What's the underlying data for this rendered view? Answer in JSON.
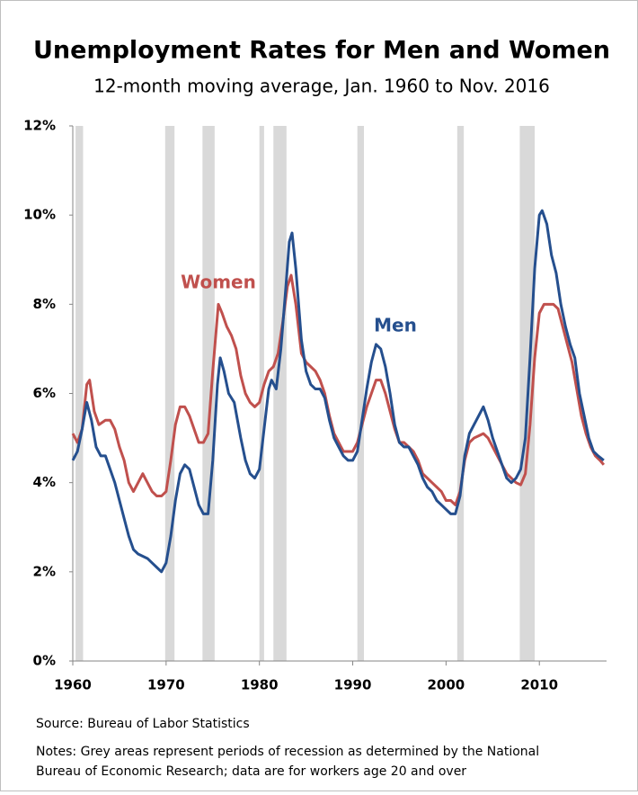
{
  "chart_data": {
    "type": "line",
    "title": "Unemployment Rates for Men and Women",
    "subtitle": "12-month moving average, Jan. 1960 to Nov. 2016",
    "source": "Source: Bureau of Labor Statistics",
    "notes": [
      "Notes: Grey areas represent periods of recession as determined by the National",
      "Bureau of Economic Research; data are for workers age 20 and over"
    ],
    "xlim": [
      1960,
      2017.2
    ],
    "xticks": [
      1960,
      1970,
      1980,
      1990,
      2000,
      2010
    ],
    "ylim": [
      0,
      12
    ],
    "yticks": [
      {
        "value": 0,
        "label": "0%"
      },
      {
        "value": 2,
        "label": "2%"
      },
      {
        "value": 4,
        "label": "4%"
      },
      {
        "value": 6,
        "label": "6%"
      },
      {
        "value": 8,
        "label": "8%"
      },
      {
        "value": 10,
        "label": "10%"
      },
      {
        "value": 12,
        "label": "12%"
      }
    ],
    "grid": false,
    "recession_color": "#d9d9d9",
    "recessions": [
      [
        1960.3,
        1961.1
      ],
      [
        1969.9,
        1970.9
      ],
      [
        1973.9,
        1975.2
      ],
      [
        1980.0,
        1980.5
      ],
      [
        1981.5,
        1982.9
      ],
      [
        1990.5,
        1991.2
      ],
      [
        2001.2,
        2001.9
      ],
      [
        2007.9,
        2009.5
      ]
    ],
    "series": [
      {
        "name": "Women",
        "color": "#c0504d",
        "x": [
          1960.0,
          1960.5,
          1961.0,
          1961.5,
          1961.8,
          1962.3,
          1962.8,
          1963.5,
          1964.0,
          1964.5,
          1965.0,
          1965.5,
          1966.0,
          1966.5,
          1967.0,
          1967.5,
          1968.0,
          1968.5,
          1969.0,
          1969.5,
          1970.0,
          1970.5,
          1971.0,
          1971.5,
          1972.0,
          1972.5,
          1973.0,
          1973.5,
          1974.0,
          1974.5,
          1975.0,
          1975.6,
          1976.0,
          1976.5,
          1977.0,
          1977.5,
          1978.0,
          1978.5,
          1979.0,
          1979.5,
          1980.0,
          1980.5,
          1981.0,
          1981.5,
          1982.0,
          1982.5,
          1983.0,
          1983.4,
          1983.9,
          1984.5,
          1985.0,
          1985.5,
          1986.0,
          1986.5,
          1987.0,
          1987.5,
          1988.0,
          1988.5,
          1989.0,
          1989.5,
          1990.0,
          1990.5,
          1991.0,
          1991.5,
          1992.0,
          1992.5,
          1993.0,
          1993.5,
          1994.0,
          1994.5,
          1995.0,
          1995.5,
          1996.0,
          1996.5,
          1997.0,
          1997.5,
          1998.0,
          1998.5,
          1999.0,
          1999.5,
          2000.0,
          2000.5,
          2001.0,
          2001.5,
          2002.0,
          2002.5,
          2003.0,
          2003.5,
          2004.0,
          2004.5,
          2005.0,
          2005.5,
          2006.0,
          2006.5,
          2007.0,
          2007.5,
          2008.0,
          2008.5,
          2009.0,
          2009.5,
          2010.0,
          2010.5,
          2011.0,
          2011.5,
          2012.0,
          2012.5,
          2013.0,
          2013.5,
          2014.0,
          2014.5,
          2015.0,
          2015.5,
          2016.0,
          2016.5,
          2016.9
        ],
        "values": [
          5.1,
          4.9,
          5.2,
          6.2,
          6.3,
          5.6,
          5.3,
          5.4,
          5.4,
          5.2,
          4.8,
          4.5,
          4.0,
          3.8,
          4.0,
          4.2,
          4.0,
          3.8,
          3.7,
          3.7,
          3.8,
          4.5,
          5.3,
          5.7,
          5.7,
          5.5,
          5.2,
          4.9,
          4.9,
          5.1,
          6.5,
          8.0,
          7.8,
          7.5,
          7.3,
          7.0,
          6.4,
          6.0,
          5.8,
          5.7,
          5.8,
          6.2,
          6.5,
          6.6,
          6.9,
          7.6,
          8.4,
          8.65,
          8.0,
          6.9,
          6.7,
          6.6,
          6.5,
          6.3,
          6.0,
          5.5,
          5.1,
          4.9,
          4.7,
          4.7,
          4.7,
          4.9,
          5.3,
          5.7,
          6.0,
          6.3,
          6.3,
          6.0,
          5.6,
          5.2,
          4.9,
          4.9,
          4.8,
          4.7,
          4.5,
          4.2,
          4.1,
          4.0,
          3.9,
          3.8,
          3.6,
          3.6,
          3.5,
          3.8,
          4.5,
          4.9,
          5.0,
          5.05,
          5.1,
          5.0,
          4.8,
          4.6,
          4.4,
          4.2,
          4.1,
          4.0,
          3.95,
          4.2,
          5.3,
          6.8,
          7.8,
          8.0,
          8.0,
          8.0,
          7.9,
          7.5,
          7.1,
          6.7,
          6.1,
          5.5,
          5.1,
          4.8,
          4.6,
          4.5,
          4.4
        ]
      },
      {
        "name": "Men",
        "color": "#254f8e",
        "x": [
          1960.0,
          1960.5,
          1961.0,
          1961.5,
          1962.0,
          1962.5,
          1963.0,
          1963.5,
          1964.0,
          1964.5,
          1965.0,
          1965.5,
          1966.0,
          1966.5,
          1967.0,
          1967.5,
          1968.0,
          1968.5,
          1969.0,
          1969.5,
          1970.0,
          1970.5,
          1971.0,
          1971.5,
          1972.0,
          1972.5,
          1973.0,
          1973.5,
          1974.0,
          1974.5,
          1975.0,
          1975.5,
          1975.8,
          1976.2,
          1976.7,
          1977.3,
          1978.0,
          1978.5,
          1979.0,
          1979.5,
          1980.0,
          1980.5,
          1981.0,
          1981.3,
          1981.8,
          1982.3,
          1982.8,
          1983.2,
          1983.5,
          1983.9,
          1984.5,
          1985.0,
          1985.5,
          1986.0,
          1986.5,
          1987.0,
          1987.5,
          1988.0,
          1988.5,
          1989.0,
          1989.5,
          1990.0,
          1990.5,
          1991.0,
          1991.5,
          1992.0,
          1992.5,
          1993.0,
          1993.5,
          1994.0,
          1994.5,
          1995.0,
          1995.5,
          1996.0,
          1996.5,
          1997.0,
          1997.5,
          1998.0,
          1998.5,
          1999.0,
          1999.5,
          2000.0,
          2000.5,
          2001.0,
          2001.5,
          2002.0,
          2002.5,
          2003.0,
          2003.5,
          2004.0,
          2004.5,
          2005.0,
          2005.5,
          2006.0,
          2006.5,
          2007.0,
          2007.5,
          2008.0,
          2008.5,
          2009.0,
          2009.5,
          2010.0,
          2010.3,
          2010.8,
          2011.3,
          2011.8,
          2012.3,
          2012.8,
          2013.3,
          2013.8,
          2014.3,
          2014.8,
          2015.3,
          2015.8,
          2016.3,
          2016.9
        ],
        "values": [
          4.5,
          4.7,
          5.2,
          5.8,
          5.4,
          4.8,
          4.6,
          4.6,
          4.3,
          4.0,
          3.6,
          3.2,
          2.8,
          2.5,
          2.4,
          2.35,
          2.3,
          2.2,
          2.1,
          2.0,
          2.2,
          2.8,
          3.6,
          4.2,
          4.4,
          4.3,
          3.9,
          3.5,
          3.3,
          3.3,
          4.5,
          6.2,
          6.8,
          6.5,
          6.0,
          5.8,
          5.0,
          4.5,
          4.2,
          4.1,
          4.3,
          5.2,
          6.1,
          6.3,
          6.1,
          7.0,
          8.3,
          9.4,
          9.6,
          8.8,
          7.2,
          6.5,
          6.2,
          6.1,
          6.1,
          5.9,
          5.4,
          5.0,
          4.8,
          4.6,
          4.5,
          4.5,
          4.7,
          5.4,
          6.1,
          6.7,
          7.1,
          7.0,
          6.6,
          6.0,
          5.3,
          4.9,
          4.8,
          4.8,
          4.6,
          4.4,
          4.1,
          3.9,
          3.8,
          3.6,
          3.5,
          3.4,
          3.3,
          3.3,
          3.7,
          4.6,
          5.1,
          5.3,
          5.5,
          5.7,
          5.4,
          5.0,
          4.7,
          4.4,
          4.1,
          4.0,
          4.1,
          4.3,
          5.0,
          6.8,
          8.8,
          10.0,
          10.1,
          9.8,
          9.1,
          8.7,
          8.0,
          7.5,
          7.1,
          6.8,
          6.0,
          5.5,
          5.0,
          4.7,
          4.6,
          4.5
        ]
      }
    ]
  }
}
